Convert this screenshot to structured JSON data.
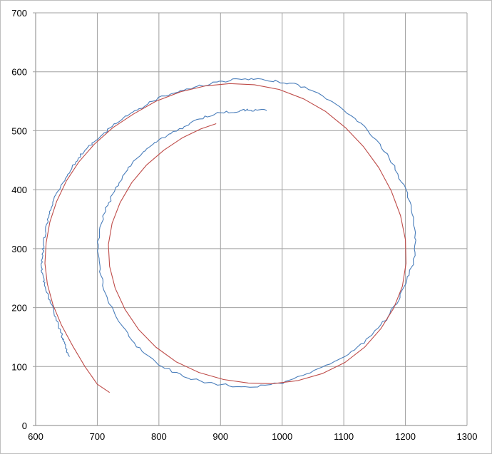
{
  "chart_data": {
    "type": "scatter",
    "title": "",
    "xlabel": "",
    "ylabel": "",
    "xlim": [
      600,
      1300
    ],
    "ylim": [
      0,
      700
    ],
    "x_ticks": [
      "600",
      "700",
      "800",
      "900",
      "1000",
      "1100",
      "1200",
      "1300"
    ],
    "y_ticks": [
      "0",
      "100",
      "200",
      "300",
      "400",
      "500",
      "600",
      "700"
    ],
    "grid": true,
    "legend": "none",
    "series": [
      {
        "color": "#4a7ebb",
        "style": "jagged",
        "points": [
          [
            655,
            117
          ],
          [
            648,
            135
          ],
          [
            643,
            150
          ],
          [
            636,
            175
          ],
          [
            628,
            200
          ],
          [
            619,
            222
          ],
          [
            613,
            245
          ],
          [
            610,
            262
          ],
          [
            611,
            285
          ],
          [
            613,
            305
          ],
          [
            616,
            328
          ],
          [
            621,
            352
          ],
          [
            627,
            375
          ],
          [
            637,
            398
          ],
          [
            648,
            420
          ],
          [
            660,
            440
          ],
          [
            674,
            460
          ],
          [
            690,
            476
          ],
          [
            708,
            493
          ],
          [
            728,
            510
          ],
          [
            750,
            526
          ],
          [
            772,
            540
          ],
          [
            800,
            556
          ],
          [
            830,
            566
          ],
          [
            862,
            575
          ],
          [
            893,
            582
          ],
          [
            925,
            587
          ],
          [
            955,
            587
          ],
          [
            990,
            584
          ],
          [
            1025,
            578
          ],
          [
            1060,
            563
          ],
          [
            1095,
            540
          ],
          [
            1128,
            512
          ],
          [
            1158,
            478
          ],
          [
            1182,
            440
          ],
          [
            1200,
            400
          ],
          [
            1212,
            360
          ],
          [
            1217,
            320
          ],
          [
            1214,
            280
          ],
          [
            1203,
            245
          ],
          [
            1188,
            212
          ],
          [
            1168,
            180
          ],
          [
            1142,
            150
          ],
          [
            1112,
            125
          ],
          [
            1078,
            104
          ],
          [
            1040,
            86
          ],
          [
            1000,
            73
          ],
          [
            960,
            66
          ],
          [
            920,
            67
          ],
          [
            880,
            72
          ],
          [
            840,
            83
          ],
          [
            805,
            100
          ],
          [
            773,
            125
          ],
          [
            748,
            155
          ],
          [
            728,
            190
          ],
          [
            713,
            225
          ],
          [
            705,
            260
          ],
          [
            700,
            295
          ],
          [
            703,
            330
          ],
          [
            712,
            362
          ],
          [
            725,
            392
          ],
          [
            742,
            422
          ],
          [
            762,
            452
          ],
          [
            785,
            474
          ],
          [
            810,
            490
          ],
          [
            838,
            505
          ],
          [
            865,
            520
          ],
          [
            895,
            530
          ],
          [
            918,
            532
          ],
          [
            940,
            535
          ],
          [
            958,
            535
          ],
          [
            975,
            534
          ]
        ]
      },
      {
        "color": "#be4b48",
        "style": "smooth",
        "points": [
          [
            720,
            56
          ],
          [
            700,
            70
          ],
          [
            680,
            100
          ],
          [
            660,
            135
          ],
          [
            642,
            170
          ],
          [
            628,
            205
          ],
          [
            619,
            240
          ],
          [
            615,
            275
          ],
          [
            617,
            310
          ],
          [
            623,
            345
          ],
          [
            634,
            380
          ],
          [
            650,
            415
          ],
          [
            670,
            447
          ],
          [
            695,
            477
          ],
          [
            725,
            505
          ],
          [
            758,
            528
          ],
          [
            795,
            550
          ],
          [
            835,
            566
          ],
          [
            875,
            576
          ],
          [
            915,
            580
          ],
          [
            955,
            578
          ],
          [
            995,
            570
          ],
          [
            1035,
            554
          ],
          [
            1070,
            533
          ],
          [
            1103,
            505
          ],
          [
            1132,
            473
          ],
          [
            1157,
            437
          ],
          [
            1177,
            398
          ],
          [
            1192,
            356
          ],
          [
            1200,
            315
          ],
          [
            1201,
            275
          ],
          [
            1195,
            236
          ],
          [
            1181,
            199
          ],
          [
            1160,
            164
          ],
          [
            1134,
            133
          ],
          [
            1102,
            107
          ],
          [
            1065,
            88
          ],
          [
            1025,
            76
          ],
          [
            985,
            71
          ],
          [
            945,
            72
          ],
          [
            905,
            78
          ],
          [
            865,
            90
          ],
          [
            828,
            108
          ],
          [
            795,
            133
          ],
          [
            767,
            163
          ],
          [
            745,
            197
          ],
          [
            729,
            233
          ],
          [
            720,
            270
          ],
          [
            718,
            307
          ],
          [
            724,
            343
          ],
          [
            737,
            378
          ],
          [
            756,
            412
          ],
          [
            780,
            442
          ],
          [
            808,
            467
          ],
          [
            838,
            488
          ],
          [
            868,
            503
          ],
          [
            893,
            512
          ]
        ]
      }
    ]
  }
}
